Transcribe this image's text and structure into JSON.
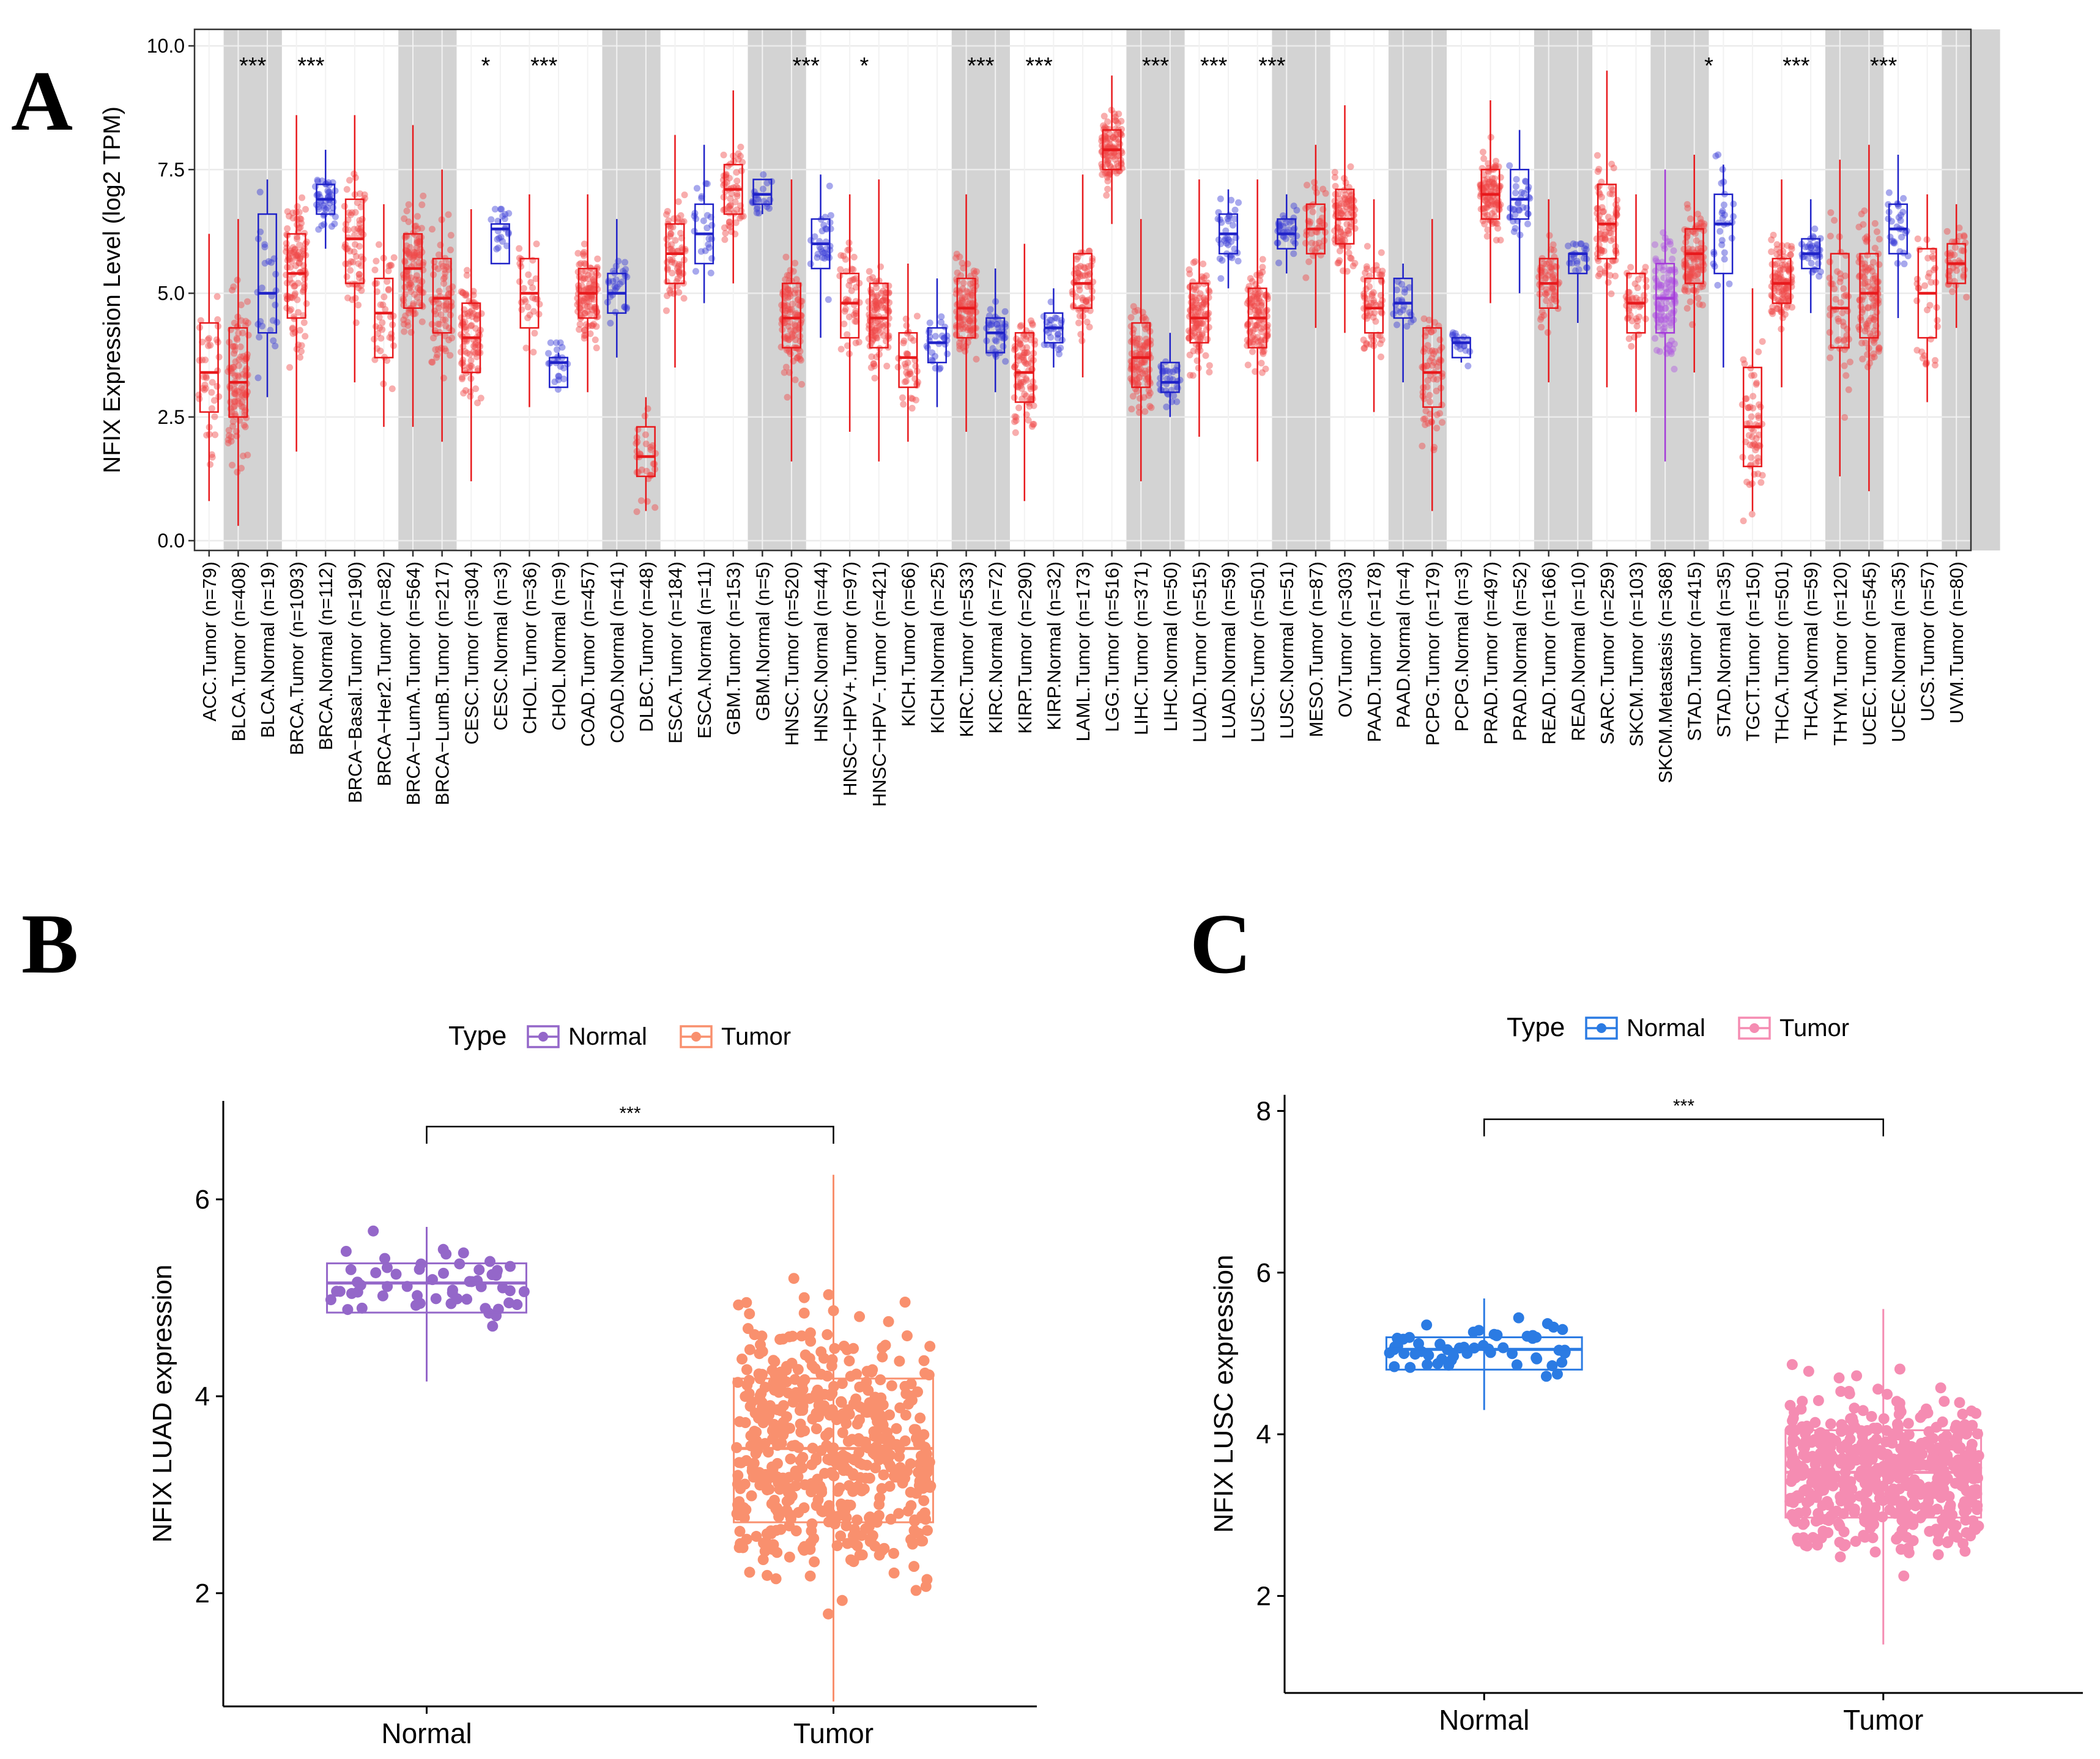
{
  "panels": {
    "a": {
      "letter": "A"
    },
    "b": {
      "letter": "B"
    },
    "c": {
      "letter": "C"
    }
  },
  "chart_data": [
    {
      "panel": "A",
      "type": "boxplot",
      "ylabel": "NFIX Expression Level (log2 TPM)",
      "ylim": [
        0,
        10
      ],
      "yticks": [
        "0.0",
        "2.5",
        "5.0",
        "7.5",
        "10.0"
      ],
      "shaded_pairs": [
        1,
        3,
        7,
        9,
        14,
        16,
        19,
        21,
        26,
        28,
        32,
        34,
        37,
        39,
        41,
        43,
        46,
        48,
        50,
        52,
        56,
        58,
        60,
        62
      ],
      "groups": [
        {
          "label": "ACC.Tumor (n=79)",
          "type": "tumor",
          "q1": 2.6,
          "med": 3.4,
          "q3": 4.4,
          "lo": 0.8,
          "hi": 6.2
        },
        {
          "label": "BLCA.Tumor (n=408)",
          "type": "tumor",
          "q1": 2.5,
          "med": 3.2,
          "q3": 4.3,
          "lo": 0.3,
          "hi": 6.5,
          "sig": "***"
        },
        {
          "label": "BLCA.Normal (n=19)",
          "type": "normal",
          "q1": 4.2,
          "med": 5.0,
          "q3": 6.6,
          "lo": 2.9,
          "hi": 7.3
        },
        {
          "label": "BRCA.Tumor (n=1093)",
          "type": "tumor",
          "q1": 4.5,
          "med": 5.4,
          "q3": 6.2,
          "lo": 1.8,
          "hi": 8.6,
          "sig": "***"
        },
        {
          "label": "BRCA.Normal (n=112)",
          "type": "normal",
          "q1": 6.6,
          "med": 6.9,
          "q3": 7.2,
          "lo": 5.9,
          "hi": 7.9
        },
        {
          "label": "BRCA−Basal.Tumor (n=190)",
          "type": "tumor",
          "q1": 5.2,
          "med": 6.1,
          "q3": 6.9,
          "lo": 3.2,
          "hi": 8.6
        },
        {
          "label": "BRCA−Her2.Tumor (n=82)",
          "type": "tumor",
          "q1": 3.7,
          "med": 4.6,
          "q3": 5.3,
          "lo": 2.3,
          "hi": 6.8
        },
        {
          "label": "BRCA−LumA.Tumor (n=564)",
          "type": "tumor",
          "q1": 4.7,
          "med": 5.5,
          "q3": 6.2,
          "lo": 2.3,
          "hi": 8.4
        },
        {
          "label": "BRCA−LumB.Tumor (n=217)",
          "type": "tumor",
          "q1": 4.2,
          "med": 4.9,
          "q3": 5.7,
          "lo": 2.0,
          "hi": 7.5
        },
        {
          "label": "CESC.Tumor (n=304)",
          "type": "tumor",
          "q1": 3.4,
          "med": 4.1,
          "q3": 4.8,
          "lo": 1.2,
          "hi": 6.7,
          "sig": "*"
        },
        {
          "label": "CESC.Normal (n=3)",
          "type": "normal",
          "q1": 5.6,
          "med": 6.3,
          "q3": 6.4,
          "lo": 5.6,
          "hi": 6.5
        },
        {
          "label": "CHOL.Tumor (n=36)",
          "type": "tumor",
          "q1": 4.3,
          "med": 5.0,
          "q3": 5.7,
          "lo": 2.7,
          "hi": 7.0,
          "sig": "***"
        },
        {
          "label": "CHOL.Normal (n=9)",
          "type": "normal",
          "q1": 3.1,
          "med": 3.6,
          "q3": 3.7,
          "lo": 3.1,
          "hi": 3.8
        },
        {
          "label": "COAD.Tumor (n=457)",
          "type": "tumor",
          "q1": 4.5,
          "med": 5.0,
          "q3": 5.5,
          "lo": 3.0,
          "hi": 7.0
        },
        {
          "label": "COAD.Normal (n=41)",
          "type": "normal",
          "q1": 4.6,
          "med": 5.0,
          "q3": 5.4,
          "lo": 3.7,
          "hi": 6.5
        },
        {
          "label": "DLBC.Tumor (n=48)",
          "type": "tumor",
          "q1": 1.3,
          "med": 1.7,
          "q3": 2.3,
          "lo": 0.6,
          "hi": 2.9
        },
        {
          "label": "ESCA.Tumor (n=184)",
          "type": "tumor",
          "q1": 5.2,
          "med": 5.8,
          "q3": 6.4,
          "lo": 3.5,
          "hi": 8.2
        },
        {
          "label": "ESCA.Normal (n=11)",
          "type": "normal",
          "q1": 5.6,
          "med": 6.2,
          "q3": 6.8,
          "lo": 4.8,
          "hi": 8.0
        },
        {
          "label": "GBM.Tumor (n=153)",
          "type": "tumor",
          "q1": 6.6,
          "med": 7.1,
          "q3": 7.6,
          "lo": 5.2,
          "hi": 9.1
        },
        {
          "label": "GBM.Normal (n=5)",
          "type": "normal",
          "q1": 6.8,
          "med": 7.0,
          "q3": 7.3,
          "lo": 6.6,
          "hi": 7.3
        },
        {
          "label": "HNSC.Tumor (n=520)",
          "type": "tumor",
          "q1": 3.9,
          "med": 4.5,
          "q3": 5.2,
          "lo": 1.6,
          "hi": 7.3,
          "sig": "***"
        },
        {
          "label": "HNSC.Normal (n=44)",
          "type": "normal",
          "q1": 5.5,
          "med": 6.0,
          "q3": 6.5,
          "lo": 4.1,
          "hi": 7.4
        },
        {
          "label": "HNSC−HPV+.Tumor (n=97)",
          "type": "tumor",
          "q1": 4.1,
          "med": 4.8,
          "q3": 5.4,
          "lo": 2.2,
          "hi": 7.0,
          "sig": "*"
        },
        {
          "label": "HNSC−HPV−.Tumor (n=421)",
          "type": "tumor",
          "q1": 3.9,
          "med": 4.5,
          "q3": 5.2,
          "lo": 1.6,
          "hi": 7.3
        },
        {
          "label": "KICH.Tumor (n=66)",
          "type": "tumor",
          "q1": 3.1,
          "med": 3.7,
          "q3": 4.2,
          "lo": 2.0,
          "hi": 5.6
        },
        {
          "label": "KICH.Normal (n=25)",
          "type": "normal",
          "q1": 3.6,
          "med": 4.0,
          "q3": 4.3,
          "lo": 2.7,
          "hi": 5.3
        },
        {
          "label": "KIRC.Tumor (n=533)",
          "type": "tumor",
          "q1": 4.1,
          "med": 4.7,
          "q3": 5.3,
          "lo": 2.2,
          "hi": 7.0,
          "sig": "***"
        },
        {
          "label": "KIRC.Normal (n=72)",
          "type": "normal",
          "q1": 3.8,
          "med": 4.2,
          "q3": 4.5,
          "lo": 3.0,
          "hi": 5.5
        },
        {
          "label": "KIRP.Tumor (n=290)",
          "type": "tumor",
          "q1": 2.8,
          "med": 3.4,
          "q3": 4.2,
          "lo": 0.8,
          "hi": 6.0,
          "sig": "***"
        },
        {
          "label": "KIRP.Normal (n=32)",
          "type": "normal",
          "q1": 4.0,
          "med": 4.3,
          "q3": 4.6,
          "lo": 3.5,
          "hi": 5.1
        },
        {
          "label": "LAML.Tumor (n=173)",
          "type": "tumor",
          "q1": 4.7,
          "med": 5.2,
          "q3": 5.8,
          "lo": 3.3,
          "hi": 7.4
        },
        {
          "label": "LGG.Tumor (n=516)",
          "type": "tumor",
          "q1": 7.5,
          "med": 7.9,
          "q3": 8.3,
          "lo": 6.4,
          "hi": 9.4
        },
        {
          "label": "LIHC.Tumor (n=371)",
          "type": "tumor",
          "q1": 3.1,
          "med": 3.7,
          "q3": 4.4,
          "lo": 1.2,
          "hi": 6.5,
          "sig": "***"
        },
        {
          "label": "LIHC.Normal (n=50)",
          "type": "normal",
          "q1": 3.0,
          "med": 3.2,
          "q3": 3.6,
          "lo": 2.5,
          "hi": 4.2
        },
        {
          "label": "LUAD.Tumor (n=515)",
          "type": "tumor",
          "q1": 4.0,
          "med": 4.5,
          "q3": 5.2,
          "lo": 2.1,
          "hi": 7.3,
          "sig": "***"
        },
        {
          "label": "LUAD.Normal (n=59)",
          "type": "normal",
          "q1": 5.8,
          "med": 6.2,
          "q3": 6.6,
          "lo": 5.1,
          "hi": 7.1
        },
        {
          "label": "LUSC.Tumor (n=501)",
          "type": "tumor",
          "q1": 3.9,
          "med": 4.5,
          "q3": 5.1,
          "lo": 1.6,
          "hi": 7.3,
          "sig": "***"
        },
        {
          "label": "LUSC.Normal (n=51)",
          "type": "normal",
          "q1": 5.9,
          "med": 6.2,
          "q3": 6.5,
          "lo": 5.4,
          "hi": 7.0
        },
        {
          "label": "MESO.Tumor (n=87)",
          "type": "tumor",
          "q1": 5.8,
          "med": 6.3,
          "q3": 6.8,
          "lo": 4.3,
          "hi": 8.0
        },
        {
          "label": "OV.Tumor (n=303)",
          "type": "tumor",
          "q1": 6.0,
          "med": 6.5,
          "q3": 7.1,
          "lo": 4.2,
          "hi": 8.8
        },
        {
          "label": "PAAD.Tumor (n=178)",
          "type": "tumor",
          "q1": 4.2,
          "med": 4.7,
          "q3": 5.3,
          "lo": 2.6,
          "hi": 6.9
        },
        {
          "label": "PAAD.Normal (n=4)",
          "type": "normal",
          "q1": 4.5,
          "med": 4.8,
          "q3": 5.3,
          "lo": 3.2,
          "hi": 5.6
        },
        {
          "label": "PCPG.Tumor (n=179)",
          "type": "tumor",
          "q1": 2.7,
          "med": 3.4,
          "q3": 4.3,
          "lo": 0.6,
          "hi": 6.5
        },
        {
          "label": "PCPG.Normal (n=3)",
          "type": "normal",
          "q1": 3.7,
          "med": 4.0,
          "q3": 4.1,
          "lo": 3.6,
          "hi": 4.1
        },
        {
          "label": "PRAD.Tumor (n=497)",
          "type": "tumor",
          "q1": 6.5,
          "med": 7.0,
          "q3": 7.5,
          "lo": 4.8,
          "hi": 8.9
        },
        {
          "label": "PRAD.Normal (n=52)",
          "type": "normal",
          "q1": 6.5,
          "med": 6.9,
          "q3": 7.5,
          "lo": 5.0,
          "hi": 8.3
        },
        {
          "label": "READ.Tumor (n=166)",
          "type": "tumor",
          "q1": 4.7,
          "med": 5.2,
          "q3": 5.7,
          "lo": 3.2,
          "hi": 6.9
        },
        {
          "label": "READ.Normal (n=10)",
          "type": "normal",
          "q1": 5.4,
          "med": 5.8,
          "q3": 5.8,
          "lo": 4.4,
          "hi": 5.8
        },
        {
          "label": "SARC.Tumor (n=259)",
          "type": "tumor",
          "q1": 5.7,
          "med": 6.4,
          "q3": 7.2,
          "lo": 3.1,
          "hi": 9.5
        },
        {
          "label": "SKCM.Tumor (n=103)",
          "type": "tumor",
          "q1": 4.2,
          "med": 4.8,
          "q3": 5.4,
          "lo": 2.6,
          "hi": 7.0
        },
        {
          "label": "SKCM.Metastasis (n=368)",
          "type": "metastasis",
          "q1": 4.2,
          "med": 4.9,
          "q3": 5.6,
          "lo": 1.6,
          "hi": 7.5
        },
        {
          "label": "STAD.Tumor (n=415)",
          "type": "tumor",
          "q1": 5.2,
          "med": 5.8,
          "q3": 6.3,
          "lo": 3.4,
          "hi": 7.8,
          "sig": "*"
        },
        {
          "label": "STAD.Normal (n=35)",
          "type": "normal",
          "q1": 5.4,
          "med": 6.4,
          "q3": 7.0,
          "lo": 3.5,
          "hi": 7.6
        },
        {
          "label": "TGCT.Tumor (n=150)",
          "type": "tumor",
          "q1": 1.5,
          "med": 2.3,
          "q3": 3.5,
          "lo": 0.6,
          "hi": 5.1
        },
        {
          "label": "THCA.Tumor (n=501)",
          "type": "tumor",
          "q1": 4.8,
          "med": 5.2,
          "q3": 5.7,
          "lo": 3.1,
          "hi": 7.3,
          "sig": "***"
        },
        {
          "label": "THCA.Normal (n=59)",
          "type": "normal",
          "q1": 5.5,
          "med": 5.8,
          "q3": 6.1,
          "lo": 4.6,
          "hi": 6.9
        },
        {
          "label": "THYM.Tumor (n=120)",
          "type": "tumor",
          "q1": 3.9,
          "med": 4.7,
          "q3": 5.8,
          "lo": 1.3,
          "hi": 7.7
        },
        {
          "label": "UCEC.Tumor (n=545)",
          "type": "tumor",
          "q1": 4.1,
          "med": 5.0,
          "q3": 5.8,
          "lo": 1.0,
          "hi": 8.0,
          "sig": "***"
        },
        {
          "label": "UCEC.Normal (n=35)",
          "type": "normal",
          "q1": 5.8,
          "med": 6.3,
          "q3": 6.8,
          "lo": 4.5,
          "hi": 7.8
        },
        {
          "label": "UCS.Tumor (n=57)",
          "type": "tumor",
          "q1": 4.1,
          "med": 5.0,
          "q3": 5.9,
          "lo": 2.8,
          "hi": 7.0
        },
        {
          "label": "UVM.Tumor (n=80)",
          "type": "tumor",
          "q1": 5.2,
          "med": 5.6,
          "q3": 6.0,
          "lo": 4.3,
          "hi": 6.8
        }
      ]
    },
    {
      "panel": "B",
      "type": "boxplot",
      "ylabel": "NFIX  LUAD expression",
      "ylim": [
        0.85,
        7.0
      ],
      "yticks": [
        "2",
        "4",
        "6"
      ],
      "ytick_values": [
        2,
        4,
        6
      ],
      "legend_title": "Type",
      "legend": [
        "Normal",
        "Tumor"
      ],
      "colors": {
        "Normal": "#9467c9",
        "Tumor": "#f9906e"
      },
      "significance": "***",
      "groups": [
        {
          "label": "Normal",
          "q1": 4.85,
          "med": 5.15,
          "q3": 5.35,
          "lo": 4.15,
          "hi": 5.72
        },
        {
          "label": "Tumor",
          "q1": 2.72,
          "med": 3.47,
          "q3": 4.18,
          "lo": 0.9,
          "hi": 6.25
        }
      ]
    },
    {
      "panel": "C",
      "type": "boxplot",
      "ylabel": "NFIX  LUSC expression",
      "ylim": [
        0.8,
        8.2
      ],
      "yticks": [
        "2",
        "4",
        "6",
        "8"
      ],
      "ytick_values": [
        2,
        4,
        6,
        8
      ],
      "legend_title": "Type",
      "legend": [
        "Normal",
        "Tumor"
      ],
      "colors": {
        "Normal": "#2b7be3",
        "Tumor": "#f58cb2"
      },
      "significance": "***",
      "groups": [
        {
          "label": "Normal",
          "q1": 4.8,
          "med": 5.05,
          "q3": 5.2,
          "lo": 4.3,
          "hi": 5.68
        },
        {
          "label": "Tumor",
          "q1": 2.97,
          "med": 3.53,
          "q3": 4.05,
          "lo": 1.4,
          "hi": 5.55
        }
      ]
    }
  ]
}
